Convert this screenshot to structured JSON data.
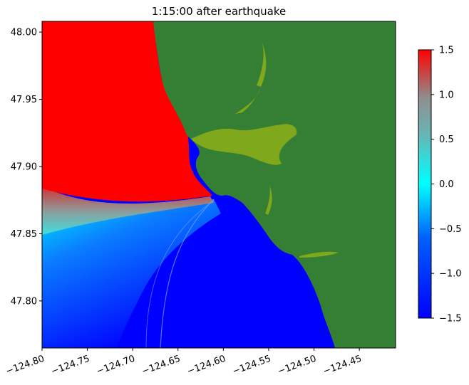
{
  "chart_data": {
    "type": "heatmap",
    "title": "1:15:00 after earthquake",
    "xlabel": "",
    "ylabel": "",
    "xlim": [
      -124.8,
      -124.41
    ],
    "ylim": [
      47.765,
      48.008
    ],
    "x_ticks": [
      -124.8,
      -124.75,
      -124.7,
      -124.65,
      -124.6,
      -124.55,
      -124.5,
      -124.45
    ],
    "x_tick_labels": [
      "−124.80",
      "−124.75",
      "−124.70",
      "−124.65",
      "−124.60",
      "−124.55",
      "−124.50",
      "−124.45"
    ],
    "y_ticks": [
      47.8,
      47.85,
      47.9,
      47.95,
      48.0
    ],
    "y_tick_labels": [
      "47.80",
      "47.85",
      "47.90",
      "47.95",
      "48.00"
    ],
    "colorbar": {
      "label": "",
      "range": [
        -1.5,
        1.5
      ],
      "ticks": [
        -1.5,
        -1.0,
        -0.5,
        0.0,
        0.5,
        1.0,
        1.5
      ],
      "tick_labels": [
        "−1.5",
        "−1.0",
        "−0.5",
        "0.0",
        "0.5",
        "1.0",
        "1.5"
      ],
      "colors": [
        "#0000ff",
        "#00ffff",
        "#808080",
        "#ff0000"
      ]
    },
    "land_color": "#357f35",
    "wetland_color": "#7fa81c"
  }
}
